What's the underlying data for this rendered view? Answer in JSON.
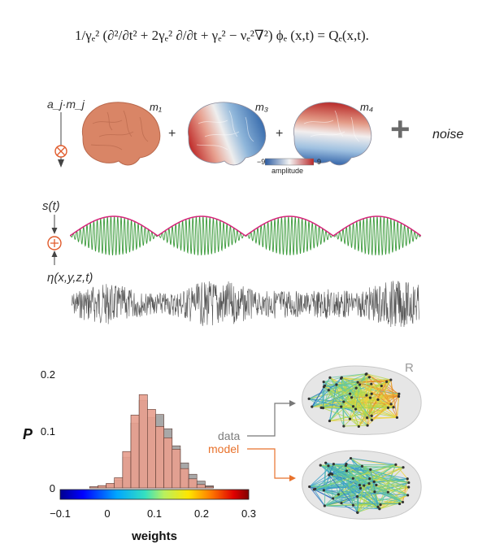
{
  "equation": {
    "text": "1/γₑ² (∂²/∂t² + 2γₑ² ∂/∂t + γₑ² − νₑ²∇²) ϕₑ (x,t) = Qₑ(x,t)."
  },
  "brain_row": {
    "coef_label": "a_j·m_j",
    "modes": [
      "m₁",
      "m₃",
      "m₄"
    ],
    "plus": "+",
    "big_plus": "+",
    "noise_label": "noise",
    "colorbar": {
      "min_label": "−9",
      "max_label": "9",
      "title": "amplitude"
    }
  },
  "signal_row": {
    "signal_label": "s(t)",
    "noise_label": "η(x,y,z,t)",
    "sum_symbol": "+"
  },
  "histogram": {
    "ylabel": "P",
    "xlabel": "weights",
    "yticks": [
      "0",
      "0.1",
      "0.2"
    ],
    "xticks": [
      "−0.1",
      "0",
      "0.1",
      "0.2",
      "0.3"
    ],
    "legend": {
      "data": "data",
      "model": "model"
    },
    "colors": {
      "data": "#a8a8a8",
      "model": "#e7a08f",
      "model_label": "#e8722c",
      "data_label": "#808080"
    }
  },
  "network": {
    "hemisphere_label": "R"
  },
  "chart_data": {
    "type": "bar",
    "xlabel": "weights",
    "ylabel": "P",
    "xlim": [
      -0.1,
      0.3
    ],
    "ylim": [
      0,
      0.2
    ],
    "bin_width": 0.0175,
    "bin_starts": [
      -0.0375,
      -0.02,
      -0.0025,
      0.015,
      0.0325,
      0.05,
      0.0675,
      0.085,
      0.1025,
      0.12,
      0.1375,
      0.155,
      0.1725,
      0.19,
      0.2075
    ],
    "series": [
      {
        "name": "data",
        "values": [
          0.002,
          0.004,
          0.006,
          0.014,
          0.054,
          0.114,
          0.154,
          0.124,
          0.129,
          0.104,
          0.074,
          0.044,
          0.024,
          0.012,
          0.004
        ]
      },
      {
        "name": "model",
        "values": [
          0.002,
          0.004,
          0.008,
          0.018,
          0.064,
          0.128,
          0.164,
          0.138,
          0.108,
          0.088,
          0.068,
          0.034,
          0.016,
          0.006,
          0.002
        ]
      }
    ]
  }
}
